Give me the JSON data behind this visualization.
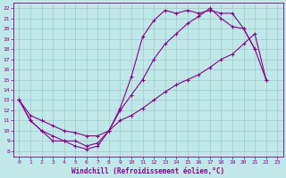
{
  "xlabel": "Windchill (Refroidissement éolien,°C)",
  "background_color": "#c0e8e8",
  "grid_color": "#a0cccc",
  "line_color": "#880088",
  "xlim": [
    -0.5,
    23.5
  ],
  "ylim": [
    7.5,
    22.5
  ],
  "xticks": [
    0,
    1,
    2,
    3,
    4,
    5,
    6,
    7,
    8,
    9,
    10,
    11,
    12,
    13,
    14,
    15,
    16,
    17,
    18,
    19,
    20,
    21,
    22,
    23
  ],
  "yticks": [
    8,
    9,
    10,
    11,
    12,
    13,
    14,
    15,
    16,
    17,
    18,
    19,
    20,
    21,
    22
  ],
  "line1_x": [
    0,
    1,
    2,
    3,
    4,
    5,
    6,
    7,
    8,
    9,
    10,
    11,
    12,
    13,
    14,
    15,
    16,
    17,
    18,
    19,
    20,
    21
  ],
  "line1_y": [
    13,
    11,
    10,
    9.5,
    9,
    8.5,
    8.2,
    8.5,
    10.0,
    12.2,
    15.3,
    19.2,
    20.8,
    21.8,
    21.5,
    21.8,
    21.5,
    21.8,
    21.5,
    21.5,
    20.0,
    18.0
  ],
  "line2_x": [
    0,
    1,
    2,
    3,
    4,
    5,
    6,
    7,
    8,
    9,
    10,
    11,
    12,
    13,
    14,
    15,
    16,
    17,
    18,
    19,
    20,
    21,
    22
  ],
  "line2_y": [
    13,
    11,
    10,
    9,
    9,
    9,
    8.5,
    8.8,
    10.0,
    12.0,
    13.5,
    15.0,
    17.0,
    18.5,
    19.5,
    20.5,
    21.2,
    22.0,
    21.0,
    20.2,
    20.0,
    18.0,
    15.0
  ],
  "line3_x": [
    0,
    1,
    2,
    3,
    4,
    5,
    6,
    7,
    8,
    9,
    10,
    11,
    12,
    13,
    14,
    15,
    16,
    17,
    18,
    19,
    20,
    21,
    22
  ],
  "line3_y": [
    13,
    11.5,
    11,
    10.5,
    10,
    9.8,
    9.5,
    9.5,
    10.0,
    11.0,
    11.5,
    12.2,
    13.0,
    13.8,
    14.5,
    15.0,
    15.5,
    16.2,
    17.0,
    17.5,
    18.5,
    19.5,
    15.0
  ]
}
